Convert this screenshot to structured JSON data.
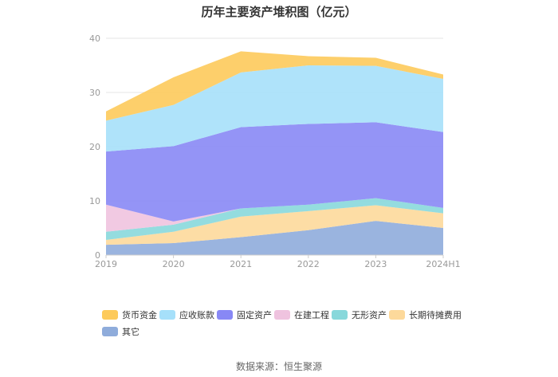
{
  "chart_data": {
    "type": "area",
    "stacked": true,
    "title": "历年主要资产堆积图（亿元）",
    "categories": [
      "2019",
      "2020",
      "2021",
      "2022",
      "2023",
      "2024H1"
    ],
    "ylim": [
      0,
      40
    ],
    "yticks": [
      0,
      10,
      20,
      30,
      40
    ],
    "grid": true,
    "legend_position": "bottom",
    "series": [
      {
        "name": "其它",
        "color": "#8facdb",
        "values": [
          1.9,
          2.2,
          3.3,
          4.6,
          6.3,
          5.0
        ]
      },
      {
        "name": "长期待摊费用",
        "color": "#fdd99b",
        "values": [
          0.9,
          2.1,
          3.8,
          3.5,
          2.9,
          2.7
        ]
      },
      {
        "name": "无形资产",
        "color": "#88d8db",
        "values": [
          1.5,
          1.3,
          1.5,
          1.2,
          1.3,
          1.0
        ]
      },
      {
        "name": "在建工程",
        "color": "#efc3df",
        "values": [
          5.0,
          0.6,
          0.0,
          0.0,
          0.0,
          0.0
        ]
      },
      {
        "name": "固定资产",
        "color": "#8888f5",
        "values": [
          9.8,
          13.9,
          15.0,
          14.9,
          14.0,
          14.0
        ]
      },
      {
        "name": "应收账款",
        "color": "#a6e0fa",
        "values": [
          5.7,
          7.6,
          10.1,
          10.8,
          10.4,
          9.8
        ]
      },
      {
        "name": "货币资金",
        "color": "#fdca5b",
        "values": [
          1.7,
          5.1,
          3.9,
          1.7,
          1.5,
          0.8
        ]
      }
    ],
    "legend_order": [
      "货币资金",
      "应收账款",
      "固定资产",
      "在建工程",
      "无形资产",
      "长期待摊费用",
      "其它"
    ]
  },
  "source": "数据来源：恒生聚源"
}
